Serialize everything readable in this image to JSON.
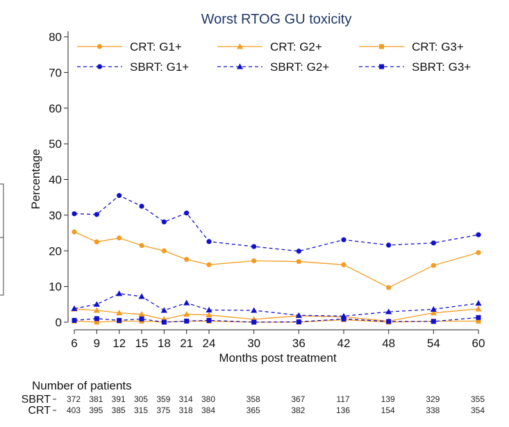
{
  "chart_data": {
    "type": "line",
    "title": "Worst RTOG GU toxicity",
    "xlabel": "Months post treatment",
    "ylabel": "Percentage",
    "x": [
      6,
      9,
      12,
      15,
      18,
      21,
      24,
      30,
      36,
      42,
      48,
      54,
      60
    ],
    "xlim": [
      6,
      60
    ],
    "ylim": [
      0,
      80
    ],
    "yticks": [
      0,
      10,
      20,
      30,
      40,
      50,
      60,
      70,
      80
    ],
    "grid": false,
    "legend_position": "top",
    "series": [
      {
        "name": "CRT: G1+",
        "color": "#f39c22",
        "dash": "solid",
        "marker": "circle",
        "values": [
          25.3,
          22.5,
          23.6,
          21.5,
          20.0,
          17.6,
          16.1,
          17.2,
          17.0,
          16.1,
          9.7,
          15.9,
          19.5
        ]
      },
      {
        "name": "CRT: G2+",
        "color": "#f39c22",
        "dash": "solid",
        "marker": "triangle",
        "values": [
          3.7,
          3.3,
          2.6,
          2.2,
          0.8,
          2.2,
          2.0,
          0.8,
          1.8,
          1.5,
          0.3,
          2.6,
          3.7
        ]
      },
      {
        "name": "CRT: G3+",
        "color": "#f39c22",
        "dash": "solid",
        "marker": "square",
        "values": [
          0.3,
          0.0,
          0.3,
          0.3,
          0.0,
          0.3,
          0.3,
          0.0,
          0.0,
          0.7,
          0.0,
          0.3,
          0.3
        ]
      },
      {
        "name": "SBRT: G1+",
        "color": "#1111cc",
        "dash": "dashed",
        "marker": "circle",
        "values": [
          30.4,
          30.2,
          35.5,
          32.5,
          28.1,
          30.6,
          22.6,
          21.2,
          19.9,
          23.1,
          21.6,
          22.2,
          24.5
        ]
      },
      {
        "name": "SBRT: G2+",
        "color": "#1111cc",
        "dash": "dashed",
        "marker": "triangle",
        "values": [
          3.8,
          5.0,
          8.0,
          7.2,
          3.3,
          5.4,
          3.4,
          3.3,
          1.9,
          1.7,
          2.9,
          3.6,
          5.3
        ]
      },
      {
        "name": "SBRT: G3+",
        "color": "#1111cc",
        "dash": "dashed",
        "marker": "square",
        "values": [
          0.5,
          1.0,
          0.5,
          0.9,
          0.0,
          0.3,
          0.5,
          0.0,
          0.1,
          0.9,
          0.2,
          0.2,
          1.3
        ]
      }
    ],
    "number_of_patients": {
      "heading": "Number of patients",
      "rows": [
        {
          "label": "SBRT",
          "values": [
            372,
            381,
            391,
            305,
            359,
            314,
            380,
            358,
            367,
            117,
            139,
            329,
            355
          ]
        },
        {
          "label": "CRT",
          "values": [
            403,
            395,
            385,
            315,
            375,
            318,
            384,
            365,
            382,
            136,
            154,
            338,
            354
          ]
        }
      ]
    }
  }
}
